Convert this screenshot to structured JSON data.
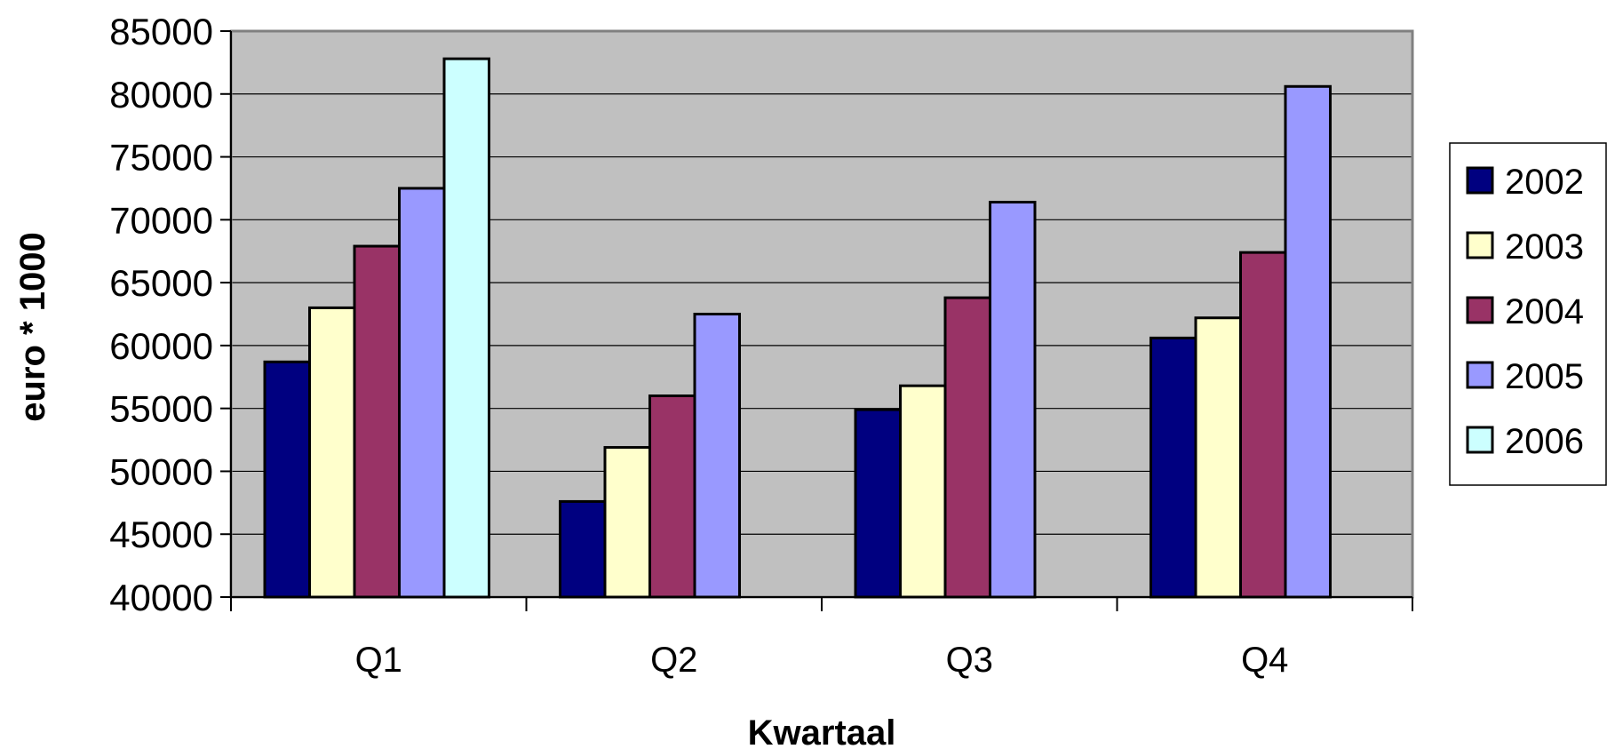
{
  "chart_data": {
    "type": "bar",
    "title": "",
    "xlabel": "Kwartaal",
    "ylabel": "euro * 1000",
    "ylim": [
      40000,
      85000
    ],
    "y_ticks": [
      "40000",
      "45000",
      "50000",
      "55000",
      "60000",
      "65000",
      "70000",
      "75000",
      "80000",
      "85000"
    ],
    "y_tick_values": [
      40000,
      45000,
      50000,
      55000,
      60000,
      65000,
      70000,
      75000,
      80000,
      85000
    ],
    "categories": [
      "Q1",
      "Q2",
      "Q3",
      "Q4"
    ],
    "series": [
      {
        "name": "2002",
        "color": "#000080",
        "values": [
          58700,
          47600,
          54900,
          60600
        ]
      },
      {
        "name": "2003",
        "color": "#FFFFCC",
        "values": [
          63000,
          51900,
          56800,
          62200
        ]
      },
      {
        "name": "2004",
        "color": "#993366",
        "values": [
          67900,
          56000,
          63800,
          67400
        ]
      },
      {
        "name": "2005",
        "color": "#9999FF",
        "values": [
          72500,
          62500,
          71400,
          80600
        ]
      },
      {
        "name": "2006",
        "color": "#CCFFFF",
        "values": [
          82800,
          null,
          null,
          null
        ]
      }
    ],
    "plot_background": "#C0C0C0",
    "grid": true,
    "legend_position": "right"
  }
}
